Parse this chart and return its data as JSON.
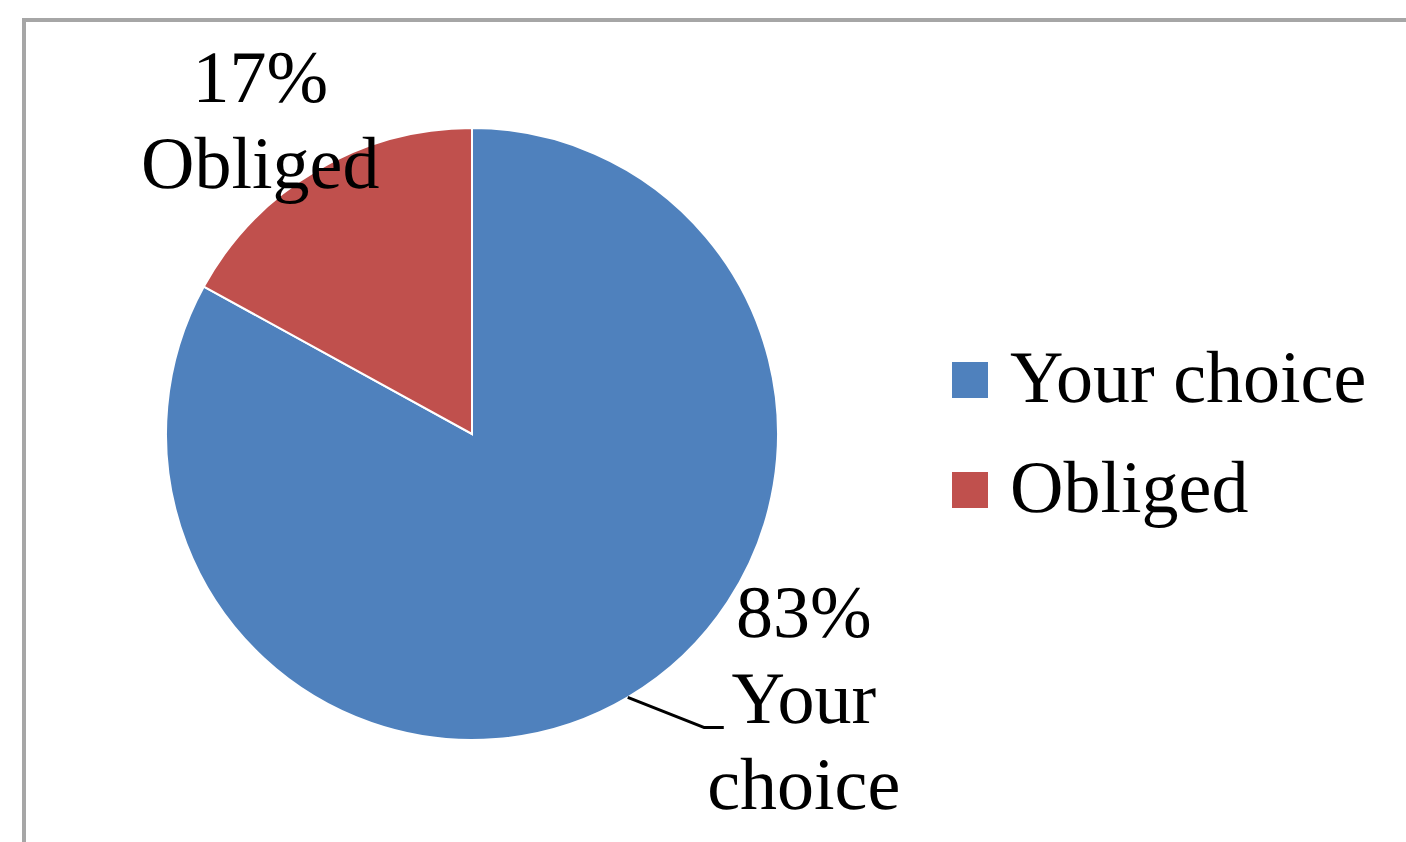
{
  "chart_data": {
    "type": "pie",
    "categories": [
      "Your choice",
      "Obliged"
    ],
    "values": [
      83,
      17
    ],
    "colors": [
      "#4f81bd",
      "#c0504d"
    ],
    "value_labels": [
      "83%",
      "17%"
    ],
    "legend": "right"
  }
}
